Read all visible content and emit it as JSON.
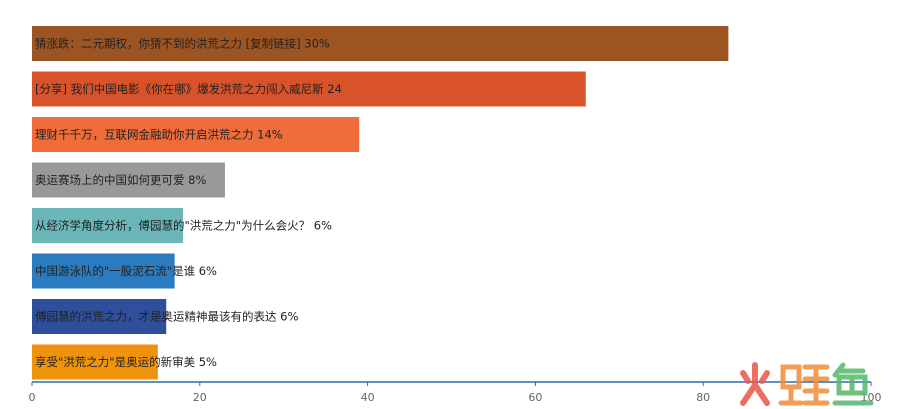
{
  "chart_data": {
    "type": "bar",
    "orientation": "horizontal",
    "title": "",
    "xlabel": "",
    "ylabel": "",
    "xlim": [
      0,
      100
    ],
    "x_ticks": [
      0,
      20,
      40,
      60,
      80,
      100
    ],
    "grid": false,
    "categories": [
      "猜涨跌：二元期权，你猜不到的洪荒之力 [复制链接] 30%",
      "[分享] 我们中国电影《你在哪》爆发洪荒之力闯入威尼斯 24",
      "理财千千万，互联网金融助你开启洪荒之力 14%",
      "奥运赛场上的中国如何更可爱 8%",
      "从经济学角度分析，傅园慧的\"洪荒之力\"为什么会火？ 6%",
      "中国游泳队的\"一股泥石流\"是谁 6%",
      "傅园慧的洪荒之力，才是奥运精神最该有的表达 6%",
      "享受\"洪荒之力\"是奥运的新审美 5%"
    ],
    "values": [
      83,
      66,
      39,
      23,
      18,
      17,
      16,
      15
    ],
    "colors": [
      "#9c5522",
      "#d9532a",
      "#ee6d3b",
      "#999999",
      "#6bb6b9",
      "#2a7bbf",
      "#2f4f9a",
      "#f0930c"
    ]
  },
  "watermark": {
    "text": "火鲤鱼",
    "colors": [
      "#e8574b",
      "#f08c3a",
      "#55b86a"
    ]
  }
}
